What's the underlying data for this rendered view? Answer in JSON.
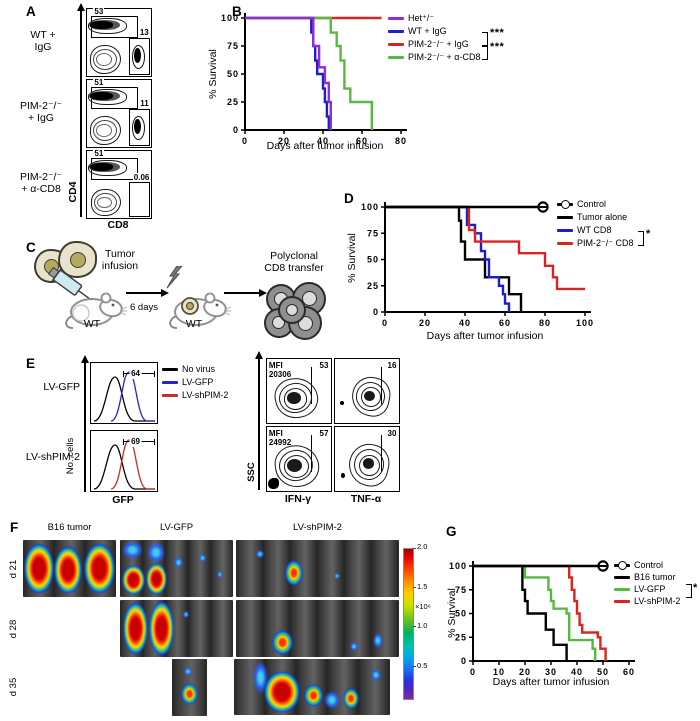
{
  "panel_labels": {
    "a": "A",
    "b": "B",
    "c": "C",
    "d": "D",
    "e": "E",
    "f": "F",
    "g": "G"
  },
  "panelA": {
    "y_axis_label": "CD4",
    "x_axis_label": "CD8",
    "plots": [
      {
        "cond1": "WT +",
        "cond2": "IgG",
        "cd4": "53",
        "cd8": "13"
      },
      {
        "cond1": "PIM-2⁻/⁻",
        "cond2": "+ IgG",
        "cd4": "51",
        "cd8": "11"
      },
      {
        "cond1": "PIM-2⁻/⁻",
        "cond2": "+ α-CD8",
        "cd4": "51",
        "cd8": "0.06"
      }
    ]
  },
  "chart_data": [
    {
      "panel": "B",
      "type": "line",
      "subtype": "kaplan-meier-step",
      "grid": false,
      "legend_position": "right",
      "xlabel": "Days after tumor infusion",
      "ylabel": "% Survival",
      "xlim": [
        0,
        80
      ],
      "ylim": [
        0,
        100
      ],
      "xticks": [
        0,
        20,
        40,
        60,
        80
      ],
      "yticks": [
        0,
        25,
        50,
        75,
        100
      ],
      "series": [
        {
          "name": "WT + IgG",
          "color": "#1d1dce",
          "points": [
            [
              0,
              100
            ],
            [
              34,
              100
            ],
            [
              34,
              87
            ],
            [
              35,
              87
            ],
            [
              35,
              75
            ],
            [
              36,
              75
            ],
            [
              36,
              62
            ],
            [
              37,
              62
            ],
            [
              37,
              50
            ],
            [
              40,
              50
            ],
            [
              40,
              37
            ],
            [
              41,
              37
            ],
            [
              41,
              25
            ],
            [
              42,
              25
            ],
            [
              42,
              12
            ],
            [
              43,
              12
            ],
            [
              43,
              0
            ]
          ]
        },
        {
          "name": "PIM-2⁻/⁻ + IgG",
          "color": "#da2420",
          "points": [
            [
              0,
              100
            ],
            [
              70,
              100
            ]
          ]
        },
        {
          "name": "PIM-2⁻/⁻ + α-CD8",
          "color": "#58b843",
          "points": [
            [
              0,
              100
            ],
            [
              44,
              100
            ],
            [
              44,
              87
            ],
            [
              47,
              87
            ],
            [
              47,
              75
            ],
            [
              49,
              75
            ],
            [
              49,
              62
            ],
            [
              51,
              62
            ],
            [
              51,
              37
            ],
            [
              54,
              37
            ],
            [
              54,
              25
            ],
            [
              65,
              25
            ],
            [
              65,
              0
            ]
          ]
        },
        {
          "name": "Het⁺/⁻",
          "color": "#8d2fd2",
          "points": [
            [
              0,
              100
            ],
            [
              35,
              100
            ],
            [
              35,
              75
            ],
            [
              38,
              75
            ],
            [
              38,
              56
            ],
            [
              41,
              56
            ],
            [
              41,
              42
            ],
            [
              43,
              42
            ],
            [
              43,
              25
            ],
            [
              44,
              25
            ],
            [
              44,
              0
            ]
          ]
        }
      ],
      "significance": [
        {
          "between": [
            "WT + IgG",
            "PIM-2⁻/⁻ + IgG"
          ],
          "label": "***"
        },
        {
          "between": [
            "PIM-2⁻/⁻ + IgG",
            "PIM-2⁻/⁻ + α-CD8"
          ],
          "label": "***"
        }
      ]
    },
    {
      "panel": "D",
      "type": "line",
      "subtype": "kaplan-meier-step",
      "grid": false,
      "legend_position": "right",
      "xlabel": "Days after tumor infusion",
      "ylabel": "% Survival",
      "xlim": [
        0,
        100
      ],
      "ylim": [
        0,
        100
      ],
      "xticks": [
        0,
        20,
        40,
        60,
        80,
        100
      ],
      "yticks": [
        0,
        25,
        50,
        75,
        100
      ],
      "series": [
        {
          "name": "Tumor alone",
          "color": "#000000",
          "points": [
            [
              0,
              100
            ],
            [
              37,
              100
            ],
            [
              37,
              87
            ],
            [
              38,
              87
            ],
            [
              38,
              67
            ],
            [
              40,
              67
            ],
            [
              40,
              50
            ],
            [
              50,
              50
            ],
            [
              50,
              33
            ],
            [
              62,
              33
            ],
            [
              62,
              17
            ],
            [
              68,
              17
            ],
            [
              68,
              0
            ]
          ]
        },
        {
          "name": "WT CD8",
          "color": "#1d1dce",
          "points": [
            [
              0,
              100
            ],
            [
              41,
              100
            ],
            [
              41,
              83
            ],
            [
              45,
              83
            ],
            [
              45,
              75
            ],
            [
              48,
              75
            ],
            [
              48,
              58
            ],
            [
              50,
              58
            ],
            [
              50,
              50
            ],
            [
              52,
              50
            ],
            [
              52,
              33
            ],
            [
              57,
              33
            ],
            [
              57,
              25
            ],
            [
              59,
              25
            ],
            [
              59,
              17
            ],
            [
              60,
              17
            ],
            [
              60,
              8
            ],
            [
              62,
              8
            ],
            [
              62,
              0
            ]
          ]
        },
        {
          "name": "PIM-2⁻/⁻ CD8",
          "color": "#da2420",
          "points": [
            [
              0,
              100
            ],
            [
              42,
              100
            ],
            [
              42,
              78
            ],
            [
              45,
              78
            ],
            [
              45,
              67
            ],
            [
              67,
              67
            ],
            [
              67,
              56
            ],
            [
              80,
              56
            ],
            [
              80,
              44
            ],
            [
              84,
              44
            ],
            [
              84,
              33
            ],
            [
              86,
              33
            ],
            [
              86,
              22
            ],
            [
              100,
              22
            ]
          ]
        },
        {
          "name": "Control",
          "color": "#000000",
          "end_marker": "circle-dash",
          "points": [
            [
              0,
              100
            ],
            [
              79,
              100
            ]
          ]
        }
      ],
      "significance": [
        {
          "between": [
            "WT CD8",
            "PIM-2⁻/⁻ CD8"
          ],
          "label": "*"
        }
      ]
    },
    {
      "panel": "G",
      "type": "line",
      "subtype": "kaplan-meier-step",
      "grid": false,
      "legend_position": "right",
      "xlabel": "Days after tumor infusion",
      "ylabel": "% Survival",
      "xlim": [
        0,
        60
      ],
      "ylim": [
        0,
        100
      ],
      "xticks": [
        0,
        10,
        20,
        30,
        40,
        50,
        60
      ],
      "yticks": [
        0,
        25,
        50,
        75,
        100
      ],
      "series": [
        {
          "name": "B16 tumor",
          "color": "#000000",
          "points": [
            [
              0,
              100
            ],
            [
              19,
              100
            ],
            [
              19,
              75
            ],
            [
              20,
              75
            ],
            [
              20,
              63
            ],
            [
              21,
              63
            ],
            [
              21,
              50
            ],
            [
              28,
              50
            ],
            [
              28,
              33
            ],
            [
              31,
              33
            ],
            [
              31,
              17
            ],
            [
              36,
              17
            ],
            [
              36,
              0
            ]
          ]
        },
        {
          "name": "LV-GFP",
          "color": "#58b843",
          "points": [
            [
              0,
              100
            ],
            [
              20,
              100
            ],
            [
              20,
              88
            ],
            [
              29,
              88
            ],
            [
              29,
              75
            ],
            [
              30,
              75
            ],
            [
              30,
              63
            ],
            [
              31,
              63
            ],
            [
              31,
              55
            ],
            [
              36,
              55
            ],
            [
              36,
              50
            ],
            [
              37,
              50
            ],
            [
              37,
              22
            ],
            [
              46,
              22
            ],
            [
              46,
              13
            ],
            [
              47,
              13
            ],
            [
              47,
              0
            ]
          ]
        },
        {
          "name": "LV-shPIM-2",
          "color": "#da2420",
          "points": [
            [
              0,
              100
            ],
            [
              37,
              100
            ],
            [
              37,
              88
            ],
            [
              38,
              88
            ],
            [
              38,
              75
            ],
            [
              39,
              75
            ],
            [
              39,
              63
            ],
            [
              40,
              63
            ],
            [
              40,
              50
            ],
            [
              41,
              50
            ],
            [
              41,
              38
            ],
            [
              42,
              38
            ],
            [
              42,
              30
            ],
            [
              48,
              30
            ],
            [
              48,
              25
            ],
            [
              49,
              25
            ],
            [
              49,
              13
            ],
            [
              51,
              13
            ],
            [
              51,
              0
            ]
          ]
        },
        {
          "name": "Control",
          "color": "#000000",
          "end_marker": "circle-dash",
          "points": [
            [
              0,
              100
            ],
            [
              50,
              100
            ]
          ]
        }
      ],
      "significance": [
        {
          "between": [
            "LV-GFP",
            "LV-shPIM-2"
          ],
          "label": "*"
        }
      ]
    }
  ],
  "panelC": {
    "step1_line1": "Tumor",
    "step1_line2": "infusion",
    "mouse1": "WT",
    "interval": "6 days",
    "mouse2": "WT",
    "step3_line1": "Polyclonal",
    "step3_line2": "CD8 transfer"
  },
  "panelE": {
    "rows": [
      {
        "label": "LV-GFP",
        "gate": "64"
      },
      {
        "label": "LV-shPIM-2",
        "gate": "69"
      }
    ],
    "hist_legend": [
      {
        "name": "No virus",
        "color": "#000000"
      },
      {
        "name": "LV-GFP",
        "color": "#2525cf"
      },
      {
        "name": "LV-shPIM-2",
        "color": "#cf2a25"
      }
    ],
    "hist_ylabel": "No. cells",
    "hist_xlabel": "GFP",
    "flow_ylabel": "SSC",
    "flow_xlabels": [
      "IFN-γ",
      "TNF-α"
    ],
    "flow_plots": [
      {
        "mfi_label": "MFI",
        "mfi": "20306",
        "gate": "53"
      },
      {
        "gate": "16"
      },
      {
        "mfi_label": "MFI",
        "mfi": "24992",
        "gate": "57"
      },
      {
        "gate": "30"
      }
    ]
  },
  "panelF": {
    "columns": [
      "B16 tumor",
      "LV-GFP",
      "LV-shPIM-2"
    ],
    "rows": [
      "d 21",
      "d 28",
      "d 35"
    ],
    "colorbar": {
      "values": [
        "2.0",
        "1.5",
        "1.0",
        "0.5"
      ],
      "multiplier": "×10⁶"
    }
  }
}
